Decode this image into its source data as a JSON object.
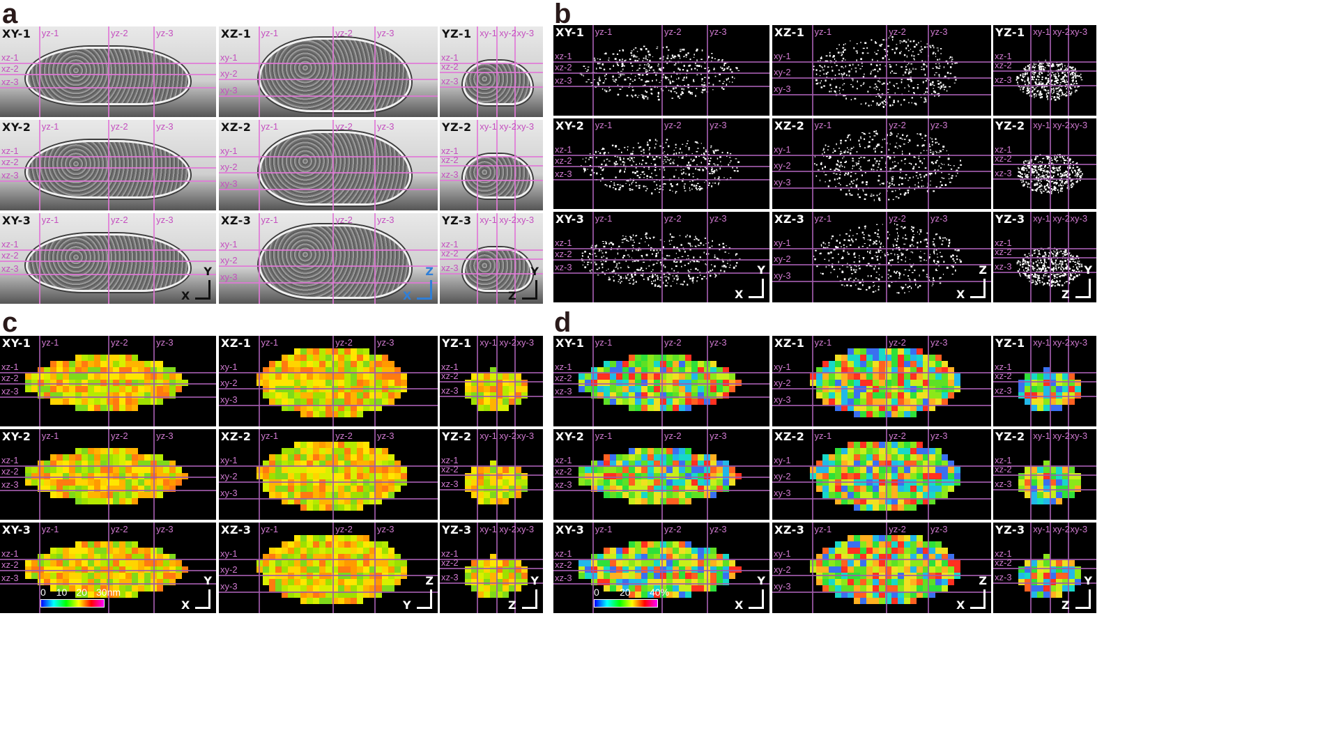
{
  "panels": {
    "a": {
      "label": "a"
    },
    "b": {
      "label": "b"
    },
    "c": {
      "label": "c"
    },
    "d": {
      "label": "d"
    }
  },
  "tile_titles": {
    "xy": [
      "XY-1",
      "XY-2",
      "XY-3"
    ],
    "xz": [
      "XZ-1",
      "XZ-2",
      "XZ-3"
    ],
    "yz": [
      "YZ-1",
      "YZ-2",
      "YZ-3"
    ]
  },
  "guide_labels": {
    "yz": [
      "yz-1",
      "yz-2",
      "yz-3"
    ],
    "xz": [
      "xz-1",
      "xz-2",
      "xz-3"
    ],
    "xy": [
      "xy-1",
      "xy-2",
      "xy-3"
    ]
  },
  "axis_labels": {
    "x": "X",
    "y": "Y",
    "z": "Z"
  },
  "colorbars": {
    "c": {
      "ticks": [
        "0",
        "10",
        "20",
        "30nm"
      ],
      "colors": [
        "#0000ff",
        "#00ffff",
        "#00ff00",
        "#ffff00",
        "#ff0000",
        "#ff00ff"
      ]
    },
    "d": {
      "ticks": [
        "0",
        "20",
        "40%"
      ],
      "colors": [
        "#0000ff",
        "#00ffff",
        "#00ff00",
        "#ffff00",
        "#ff0000",
        "#ff00ff"
      ]
    }
  },
  "colors": {
    "em_guides": "#e178d7",
    "dark_guides": "#a05aaa",
    "panel_label": "#2a1a1a",
    "axis_blue": "#2f7fd8"
  }
}
